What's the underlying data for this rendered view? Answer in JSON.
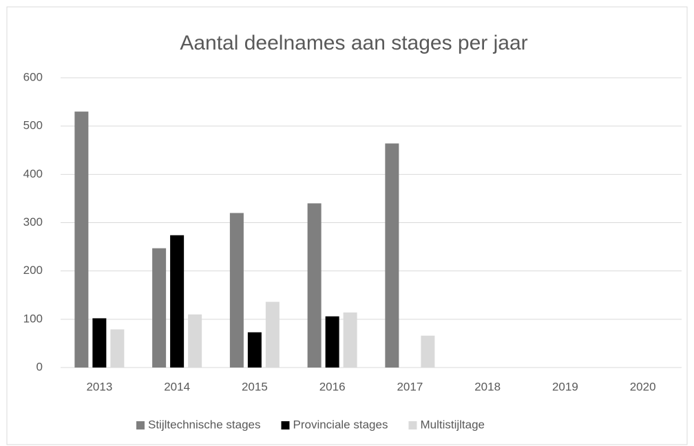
{
  "chart_data": {
    "type": "bar",
    "title": "Aantal deelnames aan stages per jaar",
    "categories": [
      "2013",
      "2014",
      "2015",
      "2016",
      "2017",
      "2018",
      "2019",
      "2020"
    ],
    "series": [
      {
        "name": "Stijltechnische stages",
        "color": "#7f7f7f",
        "values": [
          530,
          247,
          320,
          340,
          464,
          null,
          null,
          null
        ]
      },
      {
        "name": "Provinciale stages",
        "color": "#000000",
        "values": [
          102,
          274,
          73,
          106,
          null,
          null,
          null,
          null
        ]
      },
      {
        "name": "Multistijltage",
        "color": "#d9d9d9",
        "values": [
          79,
          110,
          136,
          114,
          66,
          null,
          null,
          null
        ]
      }
    ],
    "ylim": [
      0,
      600
    ],
    "yticks": [
      0,
      100,
      200,
      300,
      400,
      500,
      600
    ],
    "grid": true,
    "legend": "bottom"
  }
}
